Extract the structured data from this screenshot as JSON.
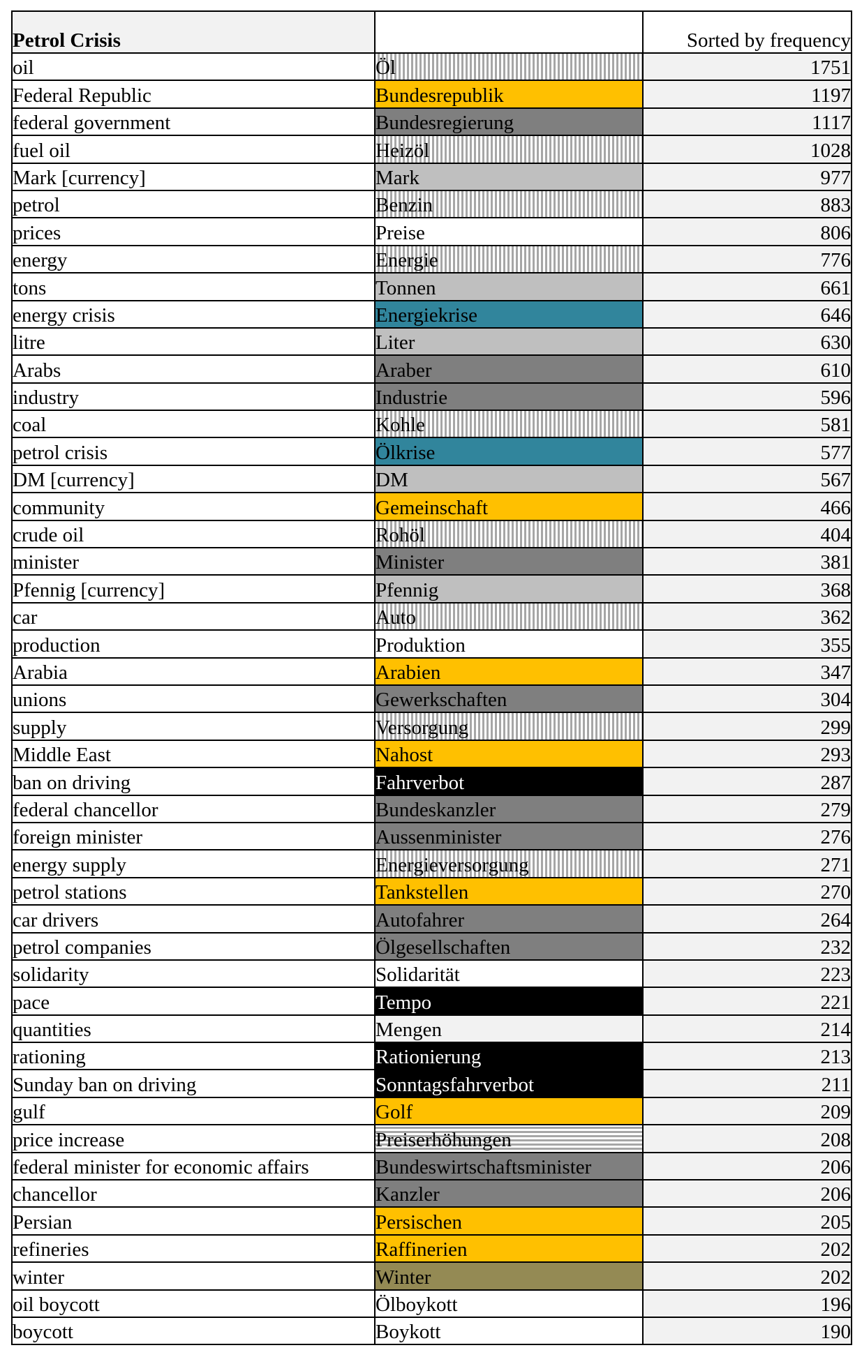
{
  "header": {
    "title": "Petrol Crisis",
    "sort_note": "Sorted by frequency"
  },
  "rows": [
    {
      "en": "oil",
      "de": "Öl",
      "freq": "1751",
      "shade": "stripe"
    },
    {
      "en": "Federal Republic",
      "de": "Bundesrepublik",
      "freq": "1197",
      "shade": "yellow"
    },
    {
      "en": "federal government",
      "de": "Bundesregierung",
      "freq": "1117",
      "shade": "dark"
    },
    {
      "en": "fuel oil",
      "de": "Heizöl",
      "freq": "1028",
      "shade": "stripe"
    },
    {
      "en": "Mark [currency]",
      "de": "Mark",
      "freq": "977",
      "shade": "light"
    },
    {
      "en": "petrol",
      "de": "Benzin",
      "freq": "883",
      "shade": "stripe"
    },
    {
      "en": "prices",
      "de": "Preise",
      "freq": "806",
      "shade": "white"
    },
    {
      "en": "energy",
      "de": "Energie",
      "freq": "776",
      "shade": "stripe"
    },
    {
      "en": "tons",
      "de": "Tonnen",
      "freq": "661",
      "shade": "light"
    },
    {
      "en": "energy crisis",
      "de": "Energiekrise",
      "freq": "646",
      "shade": "teal"
    },
    {
      "en": "litre",
      "de": "Liter",
      "freq": "630",
      "shade": "light"
    },
    {
      "en": "Arabs",
      "de": "Araber",
      "freq": "610",
      "shade": "dark"
    },
    {
      "en": "industry",
      "de": "Industrie",
      "freq": "596",
      "shade": "dark"
    },
    {
      "en": "coal",
      "de": "Kohle",
      "freq": "581",
      "shade": "stripe"
    },
    {
      "en": "petrol crisis",
      "de": "Ölkrise",
      "freq": "577",
      "shade": "teal"
    },
    {
      "en": "DM [currency]",
      "de": "DM",
      "freq": "567",
      "shade": "light"
    },
    {
      "en": "community",
      "de": "Gemeinschaft",
      "freq": "466",
      "shade": "yellow"
    },
    {
      "en": "crude oil",
      "de": "Rohöl",
      "freq": "404",
      "shade": "stripe"
    },
    {
      "en": "minister",
      "de": "Minister",
      "freq": "381",
      "shade": "dark"
    },
    {
      "en": "Pfennig [currency]",
      "de": "Pfennig",
      "freq": "368",
      "shade": "light"
    },
    {
      "en": "car",
      "de": "Auto",
      "freq": "362",
      "shade": "stripe"
    },
    {
      "en": "production",
      "de": "Produktion",
      "freq": "355",
      "shade": "white"
    },
    {
      "en": "Arabia",
      "de": "Arabien",
      "freq": "347",
      "shade": "yellow"
    },
    {
      "en": "unions",
      "de": "Gewerkschaften",
      "freq": "304",
      "shade": "dark"
    },
    {
      "en": "supply",
      "de": "Versorgung",
      "freq": "299",
      "shade": "stripe"
    },
    {
      "en": "Middle East",
      "de": "Nahost",
      "freq": "293",
      "shade": "yellow"
    },
    {
      "en": "ban on driving",
      "de": "Fahrverbot",
      "freq": "287",
      "shade": "black"
    },
    {
      "en": "federal chancellor",
      "de": "Bundeskanzler",
      "freq": "279",
      "shade": "dark"
    },
    {
      "en": "foreign minister",
      "de": "Aussenminister",
      "freq": "276",
      "shade": "dark"
    },
    {
      "en": "energy supply",
      "de": "Energieversorgung",
      "freq": "271",
      "shade": "stripe"
    },
    {
      "en": "petrol stations",
      "de": "Tankstellen",
      "freq": "270",
      "shade": "yellow"
    },
    {
      "en": "car drivers",
      "de": "Autofahrer",
      "freq": "264",
      "shade": "dark"
    },
    {
      "en": "petrol companies",
      "de": "Ölgesellschaften",
      "freq": "232",
      "shade": "dark"
    },
    {
      "en": "solidarity",
      "de": "Solidarität",
      "freq": "223",
      "shade": "white"
    },
    {
      "en": "pace",
      "de": "Tempo",
      "freq": "221",
      "shade": "black"
    },
    {
      "en": "quantities",
      "de": "Mengen",
      "freq": "214",
      "shade": "pale"
    },
    {
      "en": "rationing",
      "de": "Rationierung",
      "freq": "213",
      "shade": "black"
    },
    {
      "en": "Sunday ban on driving",
      "de": "Sonntagsfahrverbot",
      "freq": "211",
      "shade": "black"
    },
    {
      "en": "gulf",
      "de": "Golf",
      "freq": "209",
      "shade": "yellow"
    },
    {
      "en": "price increase",
      "de": "Preiserhöhungen",
      "freq": "208",
      "shade": "hstripe"
    },
    {
      "en": "federal minister for economic affairs",
      "de": "Bundeswirtschaftsminister",
      "freq": "206",
      "shade": "dark"
    },
    {
      "en": "chancellor",
      "de": "Kanzler",
      "freq": "206",
      "shade": "dark"
    },
    {
      "en": "Persian",
      "de": "Persischen",
      "freq": "205",
      "shade": "yellow"
    },
    {
      "en": "refineries",
      "de": "Raffinerien",
      "freq": "202",
      "shade": "yellow"
    },
    {
      "en": "winter",
      "de": "Winter",
      "freq": "202",
      "shade": "olive"
    },
    {
      "en": "oil boycott",
      "de": "Ölboykott",
      "freq": "196",
      "shade": "white"
    },
    {
      "en": "boycott",
      "de": "Boykott",
      "freq": "190",
      "shade": "white"
    }
  ]
}
